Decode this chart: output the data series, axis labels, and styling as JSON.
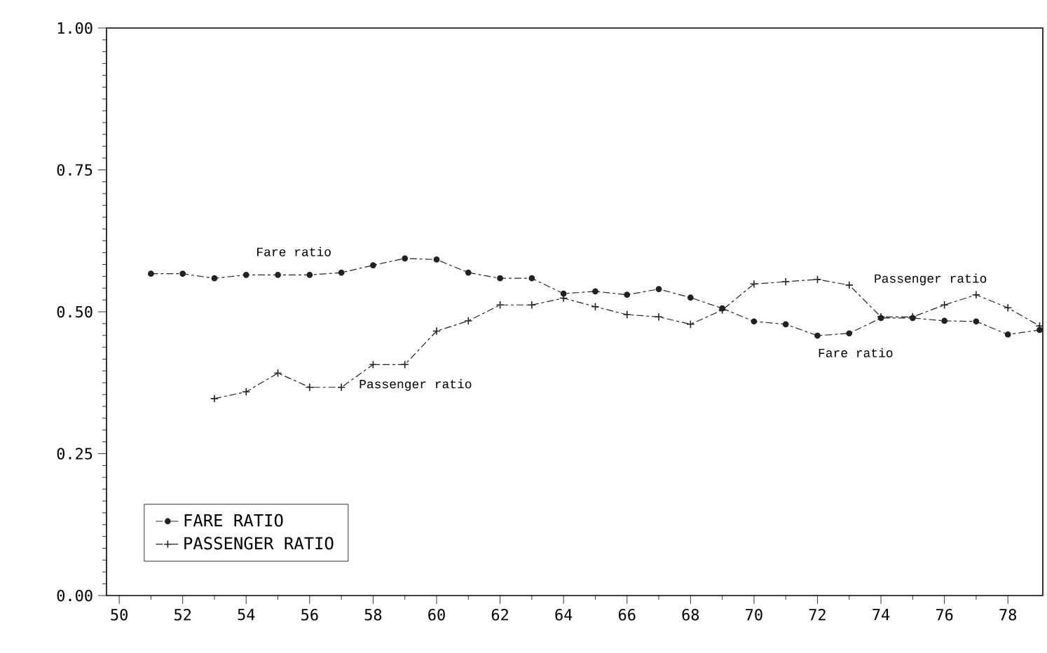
{
  "chart_data": {
    "type": "line",
    "x": [
      51,
      52,
      53,
      54,
      55,
      56,
      57,
      58,
      59,
      60,
      61,
      62,
      63,
      64,
      65,
      66,
      67,
      68,
      69,
      70,
      71,
      72,
      73,
      74,
      75,
      76,
      77,
      78,
      79
    ],
    "series": [
      {
        "name": "FARE RATIO",
        "color": "#222222",
        "marker": "circle",
        "line_style": "dashed",
        "values": [
          0.567,
          0.567,
          0.559,
          0.565,
          0.565,
          0.565,
          0.569,
          0.582,
          0.594,
          0.592,
          0.569,
          0.559,
          0.559,
          0.532,
          0.536,
          0.53,
          0.54,
          0.525,
          0.506,
          0.483,
          0.478,
          0.458,
          0.462,
          0.489,
          0.489,
          0.484,
          0.483,
          0.46,
          0.468
        ]
      },
      {
        "name": "PASSENGER RATIO",
        "color": "#222222",
        "marker": "cross",
        "line_style": "dashed",
        "values": [
          null,
          null,
          0.347,
          0.359,
          0.392,
          0.367,
          0.367,
          0.407,
          0.407,
          0.466,
          0.484,
          0.512,
          0.512,
          0.524,
          0.509,
          0.495,
          0.491,
          0.478,
          0.503,
          0.549,
          0.553,
          0.557,
          0.547,
          0.491,
          0.491,
          0.512,
          0.53,
          0.507,
          0.475
        ]
      }
    ],
    "xlim": [
      49.6,
      79.1
    ],
    "xticks": [
      50,
      52,
      54,
      56,
      58,
      60,
      62,
      64,
      66,
      68,
      70,
      72,
      74,
      76,
      78
    ],
    "ylim": [
      0,
      1
    ],
    "yticks": [
      {
        "value": 0,
        "label": "0.00"
      },
      {
        "value": 0.25,
        "label": "0.25"
      },
      {
        "value": 0.5,
        "label": "0.50"
      },
      {
        "value": 0.75,
        "label": "0.75"
      },
      {
        "value": 1,
        "label": "1.00"
      }
    ],
    "annotations": [
      "Fare ratio",
      "Passenger ratio",
      "Passenger ratio",
      "Fare ratio"
    ],
    "legend": "bottom left",
    "grid": false
  }
}
